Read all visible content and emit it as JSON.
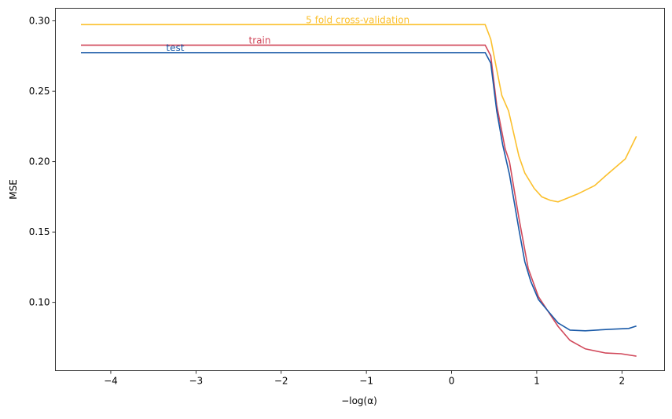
{
  "chart_data": {
    "type": "line",
    "title": "",
    "xlabel": "−log(α)",
    "ylabel": "MSE",
    "xlim": [
      -4.65,
      2.5
    ],
    "ylim": [
      0.0515,
      0.309
    ],
    "xticks": [
      -4,
      -3,
      -2,
      -1,
      0,
      1,
      2
    ],
    "xtick_labels": [
      "−4",
      "−3",
      "−2",
      "−1",
      "0",
      "1",
      "2"
    ],
    "yticks": [
      0.1,
      0.15,
      0.2,
      0.25,
      0.3
    ],
    "ytick_labels": [
      "0.10",
      "0.15",
      "0.20",
      "0.25",
      "0.30"
    ],
    "grid": false,
    "series": [
      {
        "name": "5 fold cross-validation",
        "color": "#fbc02d",
        "label_at": [
          -1.71,
          0.2985
        ],
        "x": [
          -4.35,
          0.395,
          0.46,
          0.59,
          0.67,
          0.79,
          0.86,
          0.97,
          1.06,
          1.16,
          1.25,
          1.34,
          1.48,
          1.68,
          1.81,
          2.04,
          2.17
        ],
        "y": [
          0.2974,
          0.2974,
          0.287,
          0.247,
          0.236,
          0.204,
          0.192,
          0.181,
          0.175,
          0.1725,
          0.1714,
          0.1736,
          0.177,
          0.183,
          0.19,
          0.202,
          0.218
        ]
      },
      {
        "name": "train",
        "color": "#d1495b",
        "label_at": [
          -2.38,
          0.2839
        ],
        "x": [
          -4.35,
          0.395,
          0.46,
          0.53,
          0.63,
          0.68,
          0.79,
          0.9,
          1.02,
          1.14,
          1.25,
          1.39,
          1.57,
          1.81,
          1.99,
          2.17
        ],
        "y": [
          0.2828,
          0.2828,
          0.2752,
          0.24,
          0.209,
          0.2,
          0.16,
          0.124,
          0.104,
          0.093,
          0.083,
          0.073,
          0.067,
          0.064,
          0.0635,
          0.0618
        ]
      },
      {
        "name": "test",
        "color": "#1a5aa8",
        "label_at": [
          -3.35,
          0.2786
        ],
        "x": [
          -4.35,
          0.395,
          0.46,
          0.53,
          0.6,
          0.68,
          0.79,
          0.86,
          0.93,
          1.02,
          1.13,
          1.25,
          1.39,
          1.57,
          1.85,
          2.08,
          2.17
        ],
        "y": [
          0.2775,
          0.2775,
          0.27,
          0.236,
          0.212,
          0.191,
          0.152,
          0.129,
          0.115,
          0.102,
          0.094,
          0.0854,
          0.0803,
          0.0798,
          0.0809,
          0.0815,
          0.0832
        ]
      }
    ]
  }
}
